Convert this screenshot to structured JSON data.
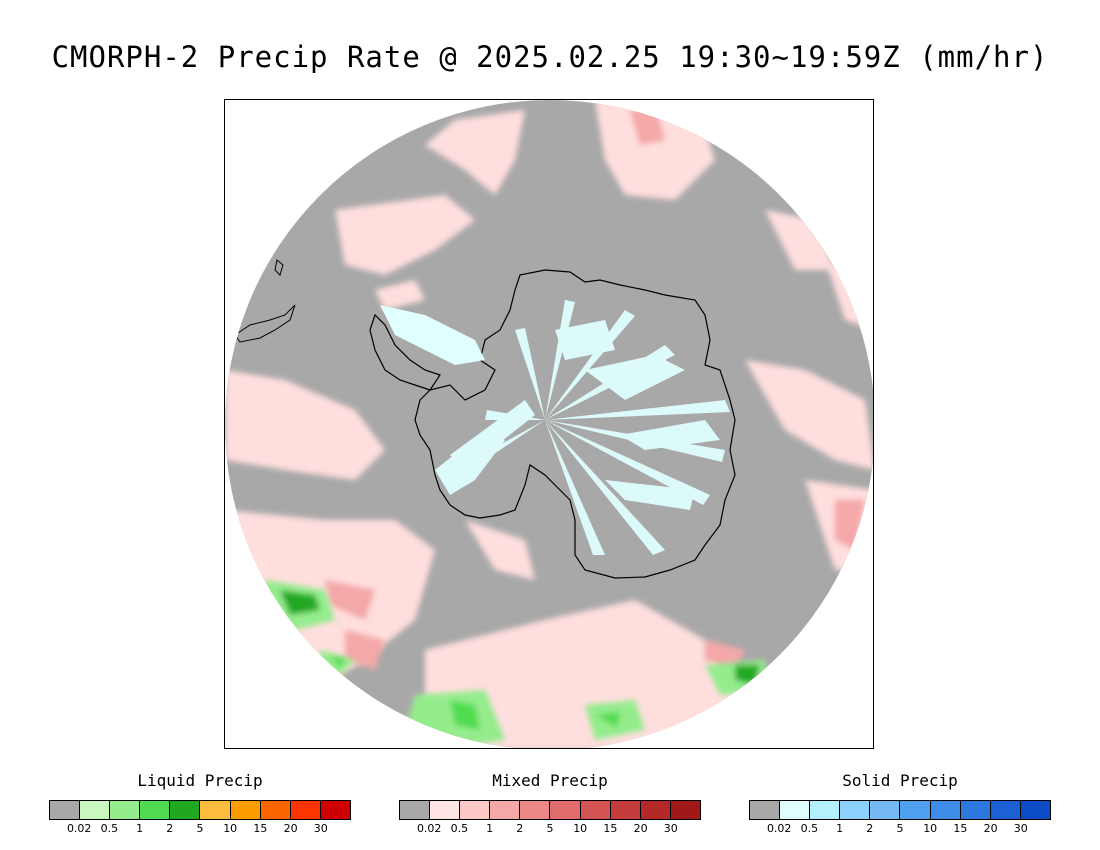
{
  "title": "CMORPH-2 Precip Rate @ 2025.02.25 19:30~19:59Z (mm/hr)",
  "map": {
    "projection": "south-polar-stereographic",
    "region": "Antarctica / Southern Ocean",
    "background_color": "#a8a8a8",
    "coastline_color": "#000000"
  },
  "legends": [
    {
      "title": "Liquid Precip",
      "colors": [
        "#a8a8a8",
        "#c8f8c0",
        "#94ec8c",
        "#50dc50",
        "#20a820",
        "#fcbc3c",
        "#fc9c00",
        "#fc6400",
        "#fc3400",
        "#cc0000"
      ],
      "ticks": [
        "0.02",
        "0.5",
        "1",
        "2",
        "5",
        "10",
        "15",
        "20",
        "30"
      ]
    },
    {
      "title": "Mixed Precip",
      "colors": [
        "#a8a8a8",
        "#ffe4e4",
        "#fcc8c8",
        "#f4a8a8",
        "#ec8888",
        "#e06c6c",
        "#d45454",
        "#c43c3c",
        "#b42828",
        "#a01818"
      ],
      "ticks": [
        "0.02",
        "0.5",
        "1",
        "2",
        "5",
        "10",
        "15",
        "20",
        "30"
      ]
    },
    {
      "title": "Solid Precip",
      "colors": [
        "#a8a8a8",
        "#e0ffff",
        "#b4f0fc",
        "#8cd0fc",
        "#74b8f4",
        "#50a0f0",
        "#3c8ce8",
        "#2c78e0",
        "#1c60d4",
        "#0c4cc4"
      ],
      "ticks": [
        "0.02",
        "0.5",
        "1",
        "2",
        "5",
        "10",
        "15",
        "20",
        "30"
      ]
    }
  ]
}
